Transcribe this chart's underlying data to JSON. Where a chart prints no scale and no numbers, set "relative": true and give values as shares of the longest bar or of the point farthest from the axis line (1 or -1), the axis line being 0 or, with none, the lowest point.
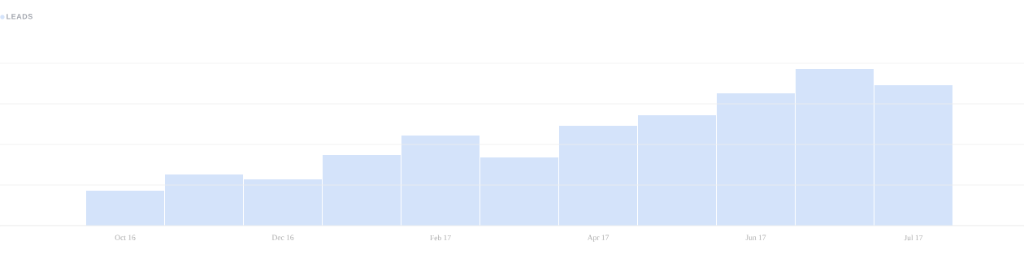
{
  "chart_data": {
    "type": "bar",
    "relative": true,
    "categories": [
      "Oct 16",
      null,
      "Dec 16",
      null,
      "Feb 17",
      null,
      "Apr 17",
      null,
      "Jun 17",
      null,
      "Jul 17"
    ],
    "series": [
      {
        "name": "LEADS",
        "color": "#d4e3fa",
        "values": [
          0.223,
          0.326,
          0.295,
          0.451,
          0.575,
          0.435,
          0.637,
          0.705,
          0.845,
          1,
          0.896
        ]
      }
    ],
    "grid": "y",
    "legend": "top left"
  }
}
